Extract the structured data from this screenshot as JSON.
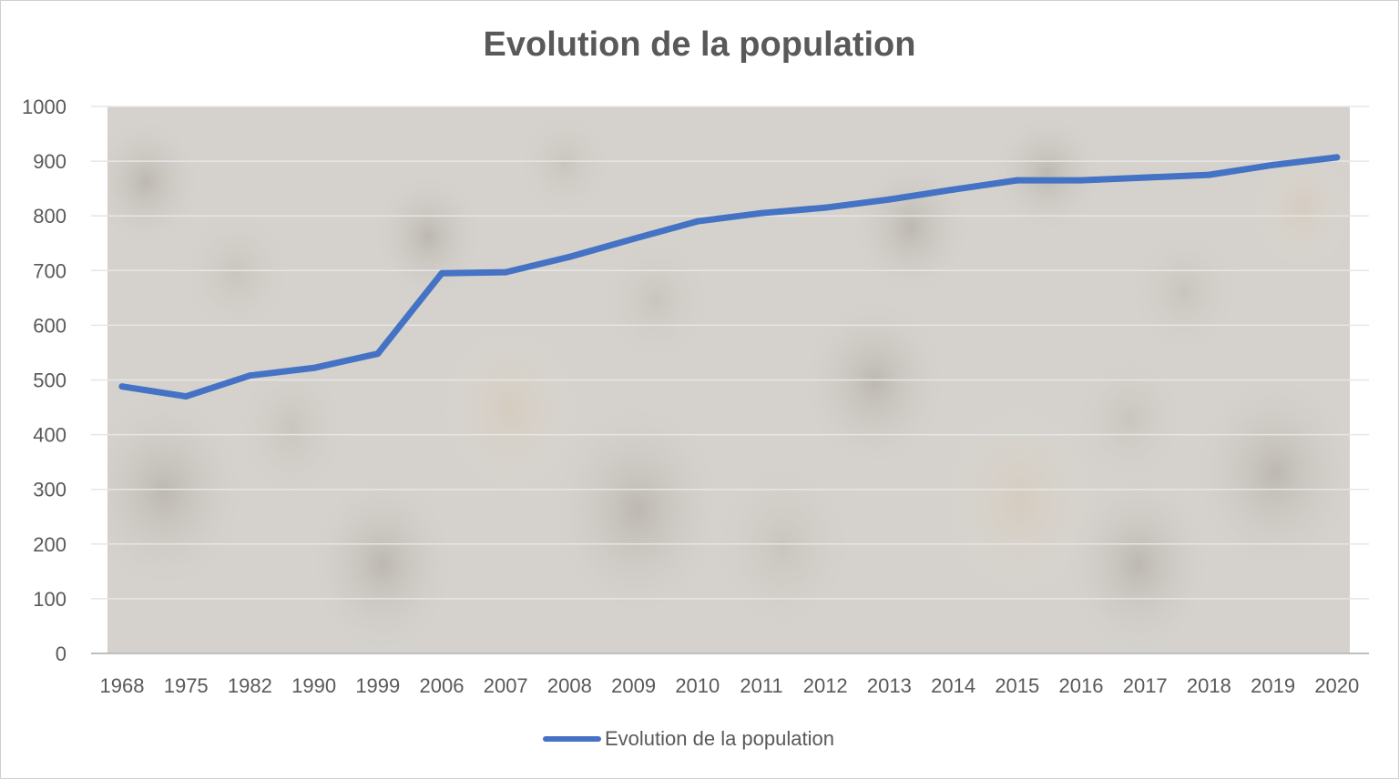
{
  "chart_data": {
    "type": "line",
    "title": "Evolution de la population",
    "xlabel": "",
    "ylabel": "",
    "categories": [
      "1968",
      "1975",
      "1982",
      "1990",
      "1999",
      "2006",
      "2007",
      "2008",
      "2009",
      "2010",
      "2011",
      "2012",
      "2013",
      "2014",
      "2015",
      "2016",
      "2017",
      "2018",
      "2019",
      "2020"
    ],
    "series": [
      {
        "name": "Evolution de la population",
        "values": [
          488,
          470,
          508,
          522,
          548,
          695,
          697,
          725,
          758,
          790,
          805,
          815,
          830,
          848,
          865,
          865,
          870,
          875,
          893,
          907
        ],
        "color": "#4472c4"
      }
    ],
    "ylim": [
      0,
      1000
    ],
    "yticks": [
      0,
      100,
      200,
      300,
      400,
      500,
      600,
      700,
      800,
      900,
      1000
    ],
    "grid": true,
    "legend": "bottom",
    "background": "crowd-photo"
  }
}
